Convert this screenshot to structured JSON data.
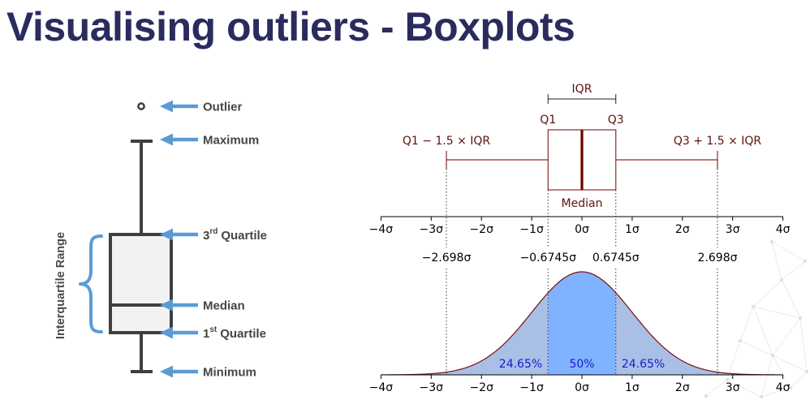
{
  "slide": {
    "title": "Visualising outliers - Boxplots",
    "title_color": "#2a2b5e"
  },
  "anatomy": {
    "range_label": "Interquartile Range",
    "outlier": "Outlier",
    "maximum": "Maximum",
    "q3": {
      "number": "3",
      "suffix": "rd",
      "word": "Quartile"
    },
    "median": "Median",
    "q1": {
      "number": "1",
      "suffix": "st",
      "word": "Quartile"
    },
    "minimum": "Minimum",
    "colors": {
      "pointer": "#5b9bd5",
      "box_fill": "#f2f2f2",
      "box_line": "#3f3f3f"
    },
    "icons": {
      "pointer": "arrow-left-icon",
      "bracket": "curly-brace-icon",
      "outlier_marker": "circle-icon"
    }
  },
  "chart_data": {
    "type": "area",
    "iqr_label": "IQR",
    "q1_label": "Q1",
    "q3_label": "Q3",
    "lower_fence_label": "Q1 − 1.5 × IQR",
    "upper_fence_label": "Q3 + 1.5 × IQR",
    "median_label": "Median",
    "x_range": [
      -4,
      4
    ],
    "sigma_ticks": [
      {
        "value": -4,
        "label": "−4σ"
      },
      {
        "value": -3,
        "label": "−3σ"
      },
      {
        "value": -2,
        "label": "−2σ"
      },
      {
        "value": -1,
        "label": "−1σ"
      },
      {
        "value": 0,
        "label": "0σ"
      },
      {
        "value": 1,
        "label": "1σ"
      },
      {
        "value": 2,
        "label": "2σ"
      },
      {
        "value": 3,
        "label": "3σ"
      },
      {
        "value": 4,
        "label": "4σ"
      }
    ],
    "cutoffs": [
      {
        "value": -2.698,
        "label": "−2.698σ"
      },
      {
        "value": -0.6745,
        "label": "−0.6745σ"
      },
      {
        "value": 0.6745,
        "label": "0.6745σ"
      },
      {
        "value": 2.698,
        "label": "2.698σ"
      }
    ],
    "areas": [
      {
        "from": -2.698,
        "to": -0.6745,
        "label": "24.65%",
        "fill": "#a9bfe6"
      },
      {
        "from": -0.6745,
        "to": 0.6745,
        "label": "50%",
        "fill": "#80b3ff"
      },
      {
        "from": 0.6745,
        "to": 2.698,
        "label": "24.65%",
        "fill": "#a9bfe6"
      }
    ],
    "colors": {
      "box_line": "#8b2a2a",
      "median_line": "#6e0000",
      "curve": "#7a1010",
      "tail_fill": "#a9bfe6",
      "percent_text": "#1a1acc",
      "annotation_text": "#5e1010"
    }
  }
}
